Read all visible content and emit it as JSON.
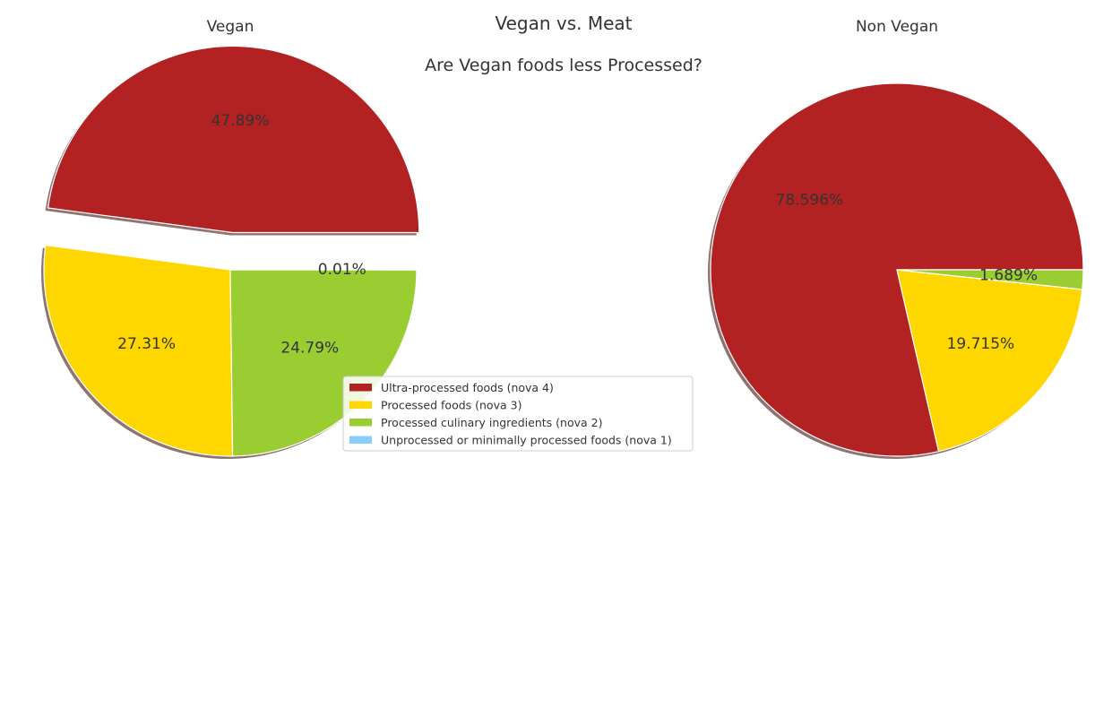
{
  "figure": {
    "title": "Vegan vs. Meat",
    "subtitle": "Are Vegan foods less Processed?"
  },
  "colors": {
    "nova4": "#b22222",
    "nova3": "#ffd700",
    "nova2": "#9acd32",
    "nova1": "#87cefa",
    "shadow": "#7a5a5a",
    "edge": "#ffffff"
  },
  "legend": {
    "placement": "center",
    "entries": [
      "Ultra-processed foods (nova 4)",
      "Processed foods (nova 3)",
      "Processed culinary ingredients (nova 2)",
      "Unprocessed or minimally processed foods (nova 1)"
    ]
  },
  "chart_data": [
    {
      "type": "pie",
      "title": "Vegan",
      "slices": [
        {
          "label": "Ultra-processed foods (nova 4)",
          "value": 47.89,
          "pct_label": "47.89%",
          "exploded": true
        },
        {
          "label": "Processed foods (nova 3)",
          "value": 27.31,
          "pct_label": "27.31%",
          "exploded": false
        },
        {
          "label": "Processed culinary ingredients (nova 2)",
          "value": 24.79,
          "pct_label": "24.79%",
          "exploded": false
        },
        {
          "label": "Unprocessed or minimally processed foods (nova 1)",
          "value": 0.01,
          "pct_label": "0.01%",
          "exploded": false
        }
      ],
      "shadow": true
    },
    {
      "type": "pie",
      "title": "Non Vegan",
      "slices": [
        {
          "label": "Ultra-processed foods (nova 4)",
          "value": 78.596,
          "pct_label": "78.596%",
          "exploded": false
        },
        {
          "label": "Processed foods (nova 3)",
          "value": 19.715,
          "pct_label": "19.715%",
          "exploded": false
        },
        {
          "label": "Processed culinary ingredients (nova 2)",
          "value": 1.689,
          "pct_label": "1.689%",
          "exploded": false
        },
        {
          "label": "Unprocessed or minimally processed foods (nova 1)",
          "value": 0.0,
          "pct_label": "",
          "exploded": false
        }
      ],
      "shadow": true
    }
  ]
}
